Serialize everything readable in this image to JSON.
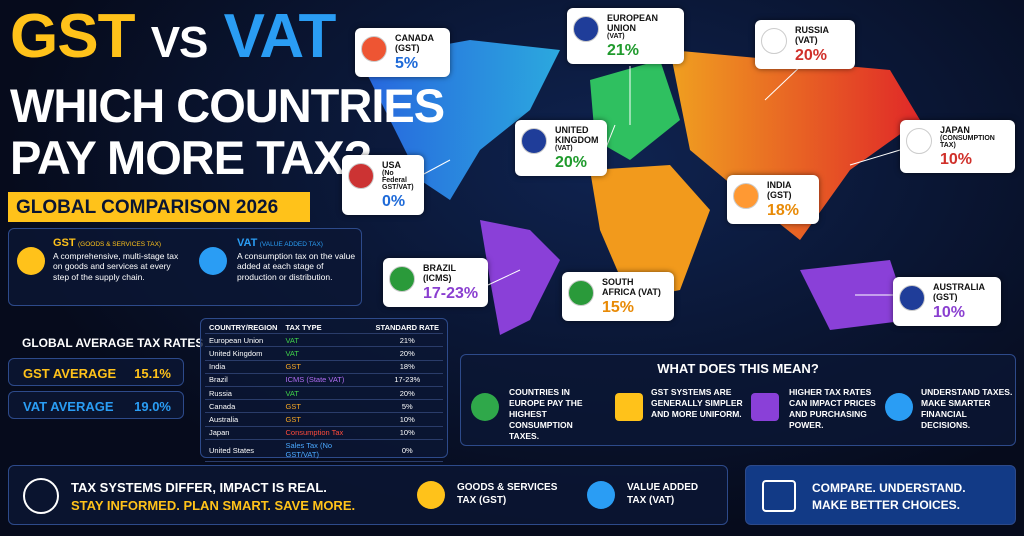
{
  "header": {
    "gst": "GST",
    "vs": "VS",
    "vat": "VAT",
    "line2": "WHICH COUNTRIES",
    "line3": "PAY MORE TAX?",
    "badge": "GLOBAL COMPARISON 2026"
  },
  "definitions": {
    "gst": {
      "title": "GST",
      "subtitle": "(GOODS & SERVICES TAX)",
      "text": "A comprehensive, multi-stage tax on goods and services at every step of the supply chain."
    },
    "vat": {
      "title": "VAT",
      "subtitle": "(VALUE ADDED TAX)",
      "text": "A consumption tax on the value added at each stage of production or distribution."
    }
  },
  "averages": {
    "title": "GLOBAL AVERAGE TAX RATES",
    "rows": [
      {
        "label": "GST AVERAGE",
        "value": "15.1%"
      },
      {
        "label": "VAT AVERAGE",
        "value": "19.0%"
      }
    ]
  },
  "table": {
    "headers": [
      "COUNTRY/REGION",
      "TAX TYPE",
      "STANDARD RATE"
    ],
    "rows": [
      [
        "European Union",
        "VAT",
        "21%"
      ],
      [
        "United Kingdom",
        "VAT",
        "20%"
      ],
      [
        "India",
        "GST",
        "18%"
      ],
      [
        "Brazil",
        "ICMS (State VAT)",
        "17-23%"
      ],
      [
        "Russia",
        "VAT",
        "20%"
      ],
      [
        "Canada",
        "GST",
        "5%"
      ],
      [
        "Australia",
        "GST",
        "10%"
      ],
      [
        "Japan",
        "Consumption Tax",
        "10%"
      ],
      [
        "United States",
        "Sales Tax (No GST/VAT)",
        "0%"
      ]
    ]
  },
  "callouts": [
    {
      "name": "CANADA (GST)",
      "rate": "5%"
    },
    {
      "name": "EUROPEAN UNION",
      "sub": "(VAT)",
      "rate": "21%"
    },
    {
      "name": "RUSSIA (VAT)",
      "rate": "20%"
    },
    {
      "name": "UNITED KINGDOM",
      "sub": "(VAT)",
      "rate": "20%"
    },
    {
      "name": "JAPAN",
      "sub": "(CONSUMPTION TAX)",
      "rate": "10%"
    },
    {
      "name": "USA",
      "sub": "(No Federal GST/VAT)",
      "rate": "0%"
    },
    {
      "name": "INDIA (GST)",
      "rate": "18%"
    },
    {
      "name": "BRAZIL (ICMS)",
      "rate": "17-23%"
    },
    {
      "name": "SOUTH AFRICA (VAT)",
      "rate": "15%"
    },
    {
      "name": "AUSTRALIA (GST)",
      "rate": "10%"
    }
  ],
  "meaning": {
    "title": "WHAT DOES THIS MEAN?",
    "items": [
      "COUNTRIES IN EUROPE PAY THE HIGHEST CONSUMPTION TAXES.",
      "GST SYSTEMS ARE GENERALLY SIMPLER AND MORE UNIFORM.",
      "HIGHER TAX RATES CAN IMPACT PRICES AND PURCHASING POWER.",
      "UNDERSTAND TAXES. MAKE SMARTER FINANCIAL DECISIONS."
    ]
  },
  "footer": {
    "line1": "TAX SYSTEMS DIFFER, IMPACT IS REAL.",
    "line2": "STAY INFORMED. PLAN SMART. SAVE MORE.",
    "gst": "GOODS & SERVICES TAX (GST)",
    "vat": "VALUE ADDED TAX (VAT)",
    "cta": "COMPARE. UNDERSTAND. MAKE BETTER CHOICES."
  }
}
